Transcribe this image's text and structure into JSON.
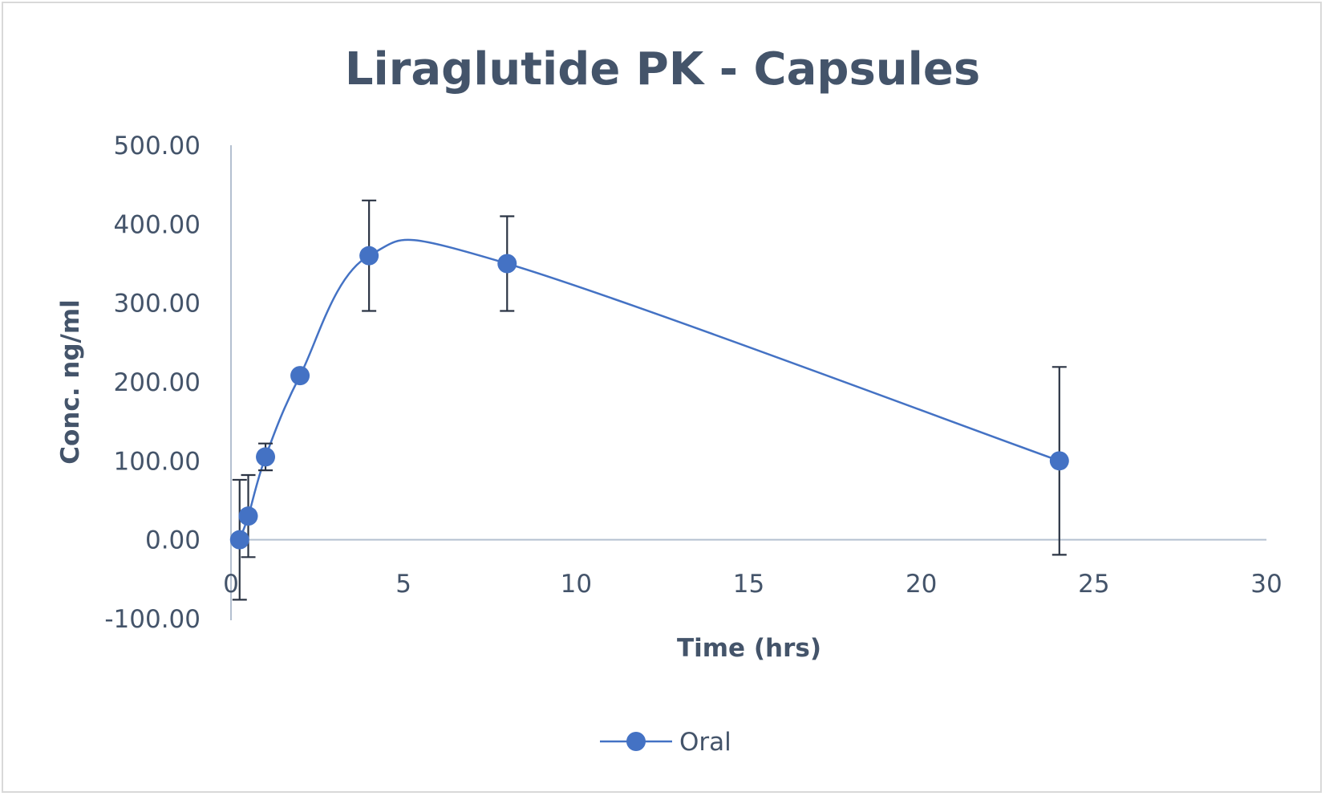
{
  "chart_data": {
    "type": "scatter",
    "title": "Liraglutide PK - Capsules",
    "xlabel": "Time (hrs)",
    "ylabel": "Conc. ng/ml",
    "xlim": [
      0,
      30
    ],
    "ylim": [
      -100,
      500
    ],
    "x_ticks": [
      "0",
      "5",
      "10",
      "15",
      "20",
      "25",
      "30"
    ],
    "y_ticks": [
      "-100.00",
      "0.00",
      "100.00",
      "200.00",
      "300.00",
      "400.00",
      "500.00"
    ],
    "grid": false,
    "smoothed_line": true,
    "legend_position": "bottom",
    "series": [
      {
        "name": "Oral",
        "color": "#4472c4",
        "marker": "circle",
        "points": [
          {
            "x": 0.25,
            "y": 0,
            "err": 76
          },
          {
            "x": 0.5,
            "y": 30,
            "err": 52
          },
          {
            "x": 1,
            "y": 105,
            "err": 17
          },
          {
            "x": 2,
            "y": 208,
            "err": 0
          },
          {
            "x": 4,
            "y": 360,
            "err": 70
          },
          {
            "x": 8,
            "y": 350,
            "err": 60
          },
          {
            "x": 24,
            "y": 100,
            "err": 119
          }
        ]
      }
    ]
  }
}
